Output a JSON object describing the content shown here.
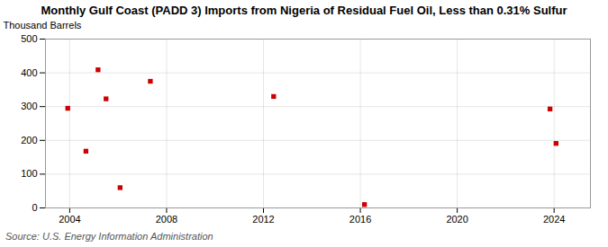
{
  "chart_data": {
    "type": "scatter",
    "title": "Monthly Gulf Coast (PADD 3) Imports from Nigeria of Residual Fuel Oil, Less than 0.31% Sulfur",
    "ylabel": "Thousand Barrels",
    "source": "Source: U.S. Energy Information Administration",
    "x": [
      2003.92,
      2004.67,
      2005.17,
      2005.5,
      2006.08,
      2007.33,
      2012.42,
      2016.17,
      2023.83,
      2024.08
    ],
    "values": [
      295,
      168,
      409,
      323,
      60,
      375,
      330,
      10,
      293,
      191
    ],
    "color": "#cc0000",
    "marker": "square",
    "xlim": [
      2003.0,
      2025.5
    ],
    "ylim": [
      0,
      500
    ],
    "xticks": [
      2004,
      2008,
      2012,
      2016,
      2020,
      2024
    ],
    "yticks": [
      0,
      100,
      200,
      300,
      400,
      500
    ],
    "grid": true
  }
}
